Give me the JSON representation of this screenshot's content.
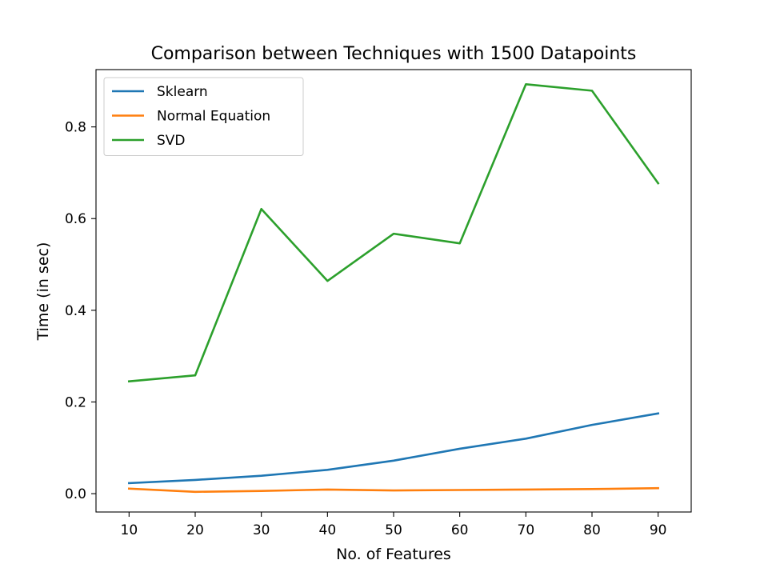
{
  "chart_data": {
    "type": "line",
    "title": "Comparison between Techniques with 1500 Datapoints",
    "xlabel": "No. of Features",
    "ylabel": "Time (in sec)",
    "x": [
      10,
      20,
      30,
      40,
      50,
      60,
      70,
      80,
      90
    ],
    "xlim": [
      5,
      95
    ],
    "ylim": [
      -0.04,
      0.925
    ],
    "xticks": [
      10,
      20,
      30,
      40,
      50,
      60,
      70,
      80,
      90
    ],
    "yticks": [
      0.0,
      0.2,
      0.4,
      0.6,
      0.8
    ],
    "ytick_labels": [
      "0.0",
      "0.2",
      "0.4",
      "0.6",
      "0.8"
    ],
    "grid": false,
    "legend_position": "upper-left",
    "series": [
      {
        "name": "Sklearn",
        "color": "#1f77b4",
        "values": [
          0.023,
          0.03,
          0.039,
          0.052,
          0.072,
          0.098,
          0.12,
          0.15,
          0.175
        ]
      },
      {
        "name": "Normal Equation",
        "color": "#ff7f0e",
        "values": [
          0.011,
          0.004,
          0.006,
          0.009,
          0.007,
          0.008,
          0.009,
          0.01,
          0.012
        ]
      },
      {
        "name": "SVD",
        "color": "#2ca02c",
        "values": [
          0.245,
          0.258,
          0.621,
          0.464,
          0.567,
          0.546,
          0.893,
          0.879,
          0.677
        ]
      }
    ]
  }
}
